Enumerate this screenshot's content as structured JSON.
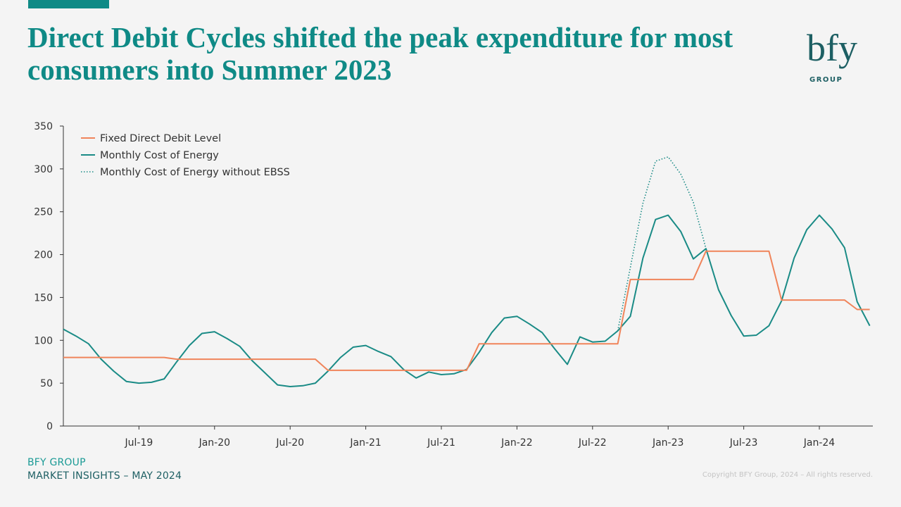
{
  "header": {
    "title": "Direct Debit Cycles shifted the peak expenditure for most consumers into Summer 2023",
    "logo_text": "bfy",
    "logo_subtext": "GROUP"
  },
  "footer": {
    "brand": "BFY GROUP",
    "subtitle": "MARKET INSIGHTS – MAY 2024",
    "copyright": "Copyright BFY Group, 2024 – All rights reserved."
  },
  "colors": {
    "accent": "#0f8a86",
    "fixed_dd": "#f0845a",
    "energy": "#1a8b86",
    "axis": "#333333"
  },
  "chart_data": {
    "type": "line",
    "title": "",
    "xlabel": "",
    "ylabel": "",
    "ylim": [
      0,
      350
    ],
    "y_ticks": [
      0,
      50,
      100,
      150,
      200,
      250,
      300,
      350
    ],
    "x_tick_labels": [
      "Jul-19",
      "Jan-20",
      "Jul-20",
      "Jan-21",
      "Jul-21",
      "Jan-22",
      "Jul-22",
      "Jan-23",
      "Jul-23",
      "Jan-24"
    ],
    "grid": false,
    "legend_position": "top-left",
    "x": [
      "Jan-19",
      "Feb-19",
      "Mar-19",
      "Apr-19",
      "May-19",
      "Jun-19",
      "Jul-19",
      "Aug-19",
      "Sep-19",
      "Oct-19",
      "Nov-19",
      "Dec-19",
      "Jan-20",
      "Feb-20",
      "Mar-20",
      "Apr-20",
      "May-20",
      "Jun-20",
      "Jul-20",
      "Aug-20",
      "Sep-20",
      "Oct-20",
      "Nov-20",
      "Dec-20",
      "Jan-21",
      "Feb-21",
      "Mar-21",
      "Apr-21",
      "May-21",
      "Jun-21",
      "Jul-21",
      "Aug-21",
      "Sep-21",
      "Oct-21",
      "Nov-21",
      "Dec-21",
      "Jan-22",
      "Feb-22",
      "Mar-22",
      "Apr-22",
      "May-22",
      "Jun-22",
      "Jul-22",
      "Aug-22",
      "Sep-22",
      "Oct-22",
      "Nov-22",
      "Dec-22",
      "Jan-23",
      "Feb-23",
      "Mar-23",
      "Apr-23",
      "May-23",
      "Jun-23",
      "Jul-23",
      "Aug-23",
      "Sep-23",
      "Oct-23",
      "Nov-23",
      "Dec-23",
      "Jan-24",
      "Feb-24",
      "Mar-24",
      "Apr-24",
      "May-24"
    ],
    "series": [
      {
        "name": "Fixed Direct Debit Level",
        "color": "#f0845a",
        "style": "solid",
        "values": [
          80,
          80,
          80,
          80,
          80,
          80,
          80,
          80,
          80,
          78,
          78,
          78,
          78,
          78,
          78,
          78,
          78,
          78,
          78,
          78,
          78,
          65,
          65,
          65,
          65,
          65,
          65,
          65,
          65,
          65,
          65,
          65,
          65,
          96,
          96,
          96,
          96,
          96,
          96,
          96,
          96,
          96,
          96,
          96,
          96,
          171,
          171,
          171,
          171,
          171,
          171,
          204,
          204,
          204,
          204,
          204,
          204,
          147,
          147,
          147,
          147,
          147,
          147,
          136,
          136
        ]
      },
      {
        "name": "Monthly Cost of Energy",
        "color": "#1a8b86",
        "style": "solid",
        "values": [
          113,
          105,
          96,
          78,
          64,
          52,
          50,
          51,
          55,
          75,
          94,
          108,
          110,
          102,
          93,
          76,
          62,
          48,
          46,
          47,
          50,
          64,
          80,
          92,
          94,
          87,
          81,
          66,
          56,
          63,
          60,
          61,
          66,
          86,
          109,
          126,
          128,
          119,
          109,
          90,
          72,
          104,
          98,
          99,
          111,
          128,
          196,
          241,
          246,
          227,
          195,
          207,
          159,
          129,
          105,
          106,
          117,
          146,
          196,
          229,
          246,
          230,
          208,
          145,
          117
        ]
      },
      {
        "name": "Monthly Cost of Energy  without EBSS",
        "color": "#1a8b86",
        "style": "dotted",
        "values": [
          null,
          null,
          null,
          null,
          null,
          null,
          null,
          null,
          null,
          null,
          null,
          null,
          null,
          null,
          null,
          null,
          null,
          null,
          null,
          null,
          null,
          null,
          null,
          null,
          null,
          null,
          null,
          null,
          null,
          null,
          null,
          null,
          null,
          null,
          null,
          null,
          null,
          null,
          null,
          null,
          null,
          null,
          null,
          null,
          111,
          185,
          260,
          309,
          314,
          294,
          261,
          207,
          null,
          null,
          null,
          null,
          null,
          null,
          null,
          null,
          null,
          null,
          null,
          null,
          null
        ]
      }
    ]
  }
}
